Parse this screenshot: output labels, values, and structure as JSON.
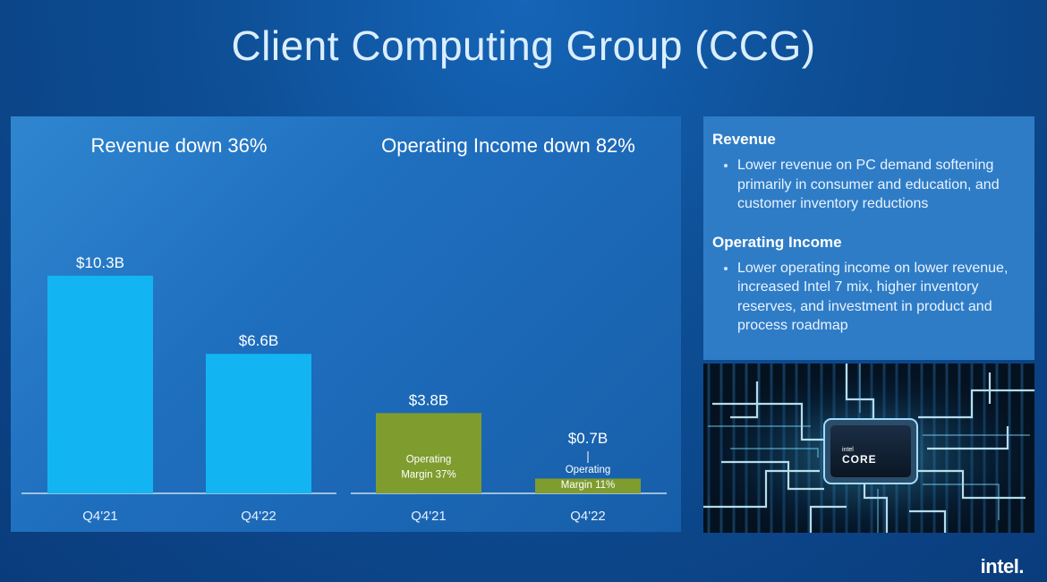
{
  "title": "Client Computing Group (CCG)",
  "colors": {
    "revenue_bar": "#12b5f2",
    "income_bar": "#7f9c2e",
    "baseline": "#c9dcef"
  },
  "chart_data": [
    {
      "type": "bar",
      "title": "Revenue down 36%",
      "categories": [
        "Q4'21",
        "Q4'22"
      ],
      "values": [
        10.3,
        6.6
      ],
      "value_labels": [
        "$10.3B",
        "$6.6B"
      ],
      "unit": "$B"
    },
    {
      "type": "bar",
      "title": "Operating Income down 82%",
      "categories": [
        "Q4'21",
        "Q4'22"
      ],
      "values": [
        3.8,
        0.7
      ],
      "value_labels": [
        "$3.8B",
        "$0.7B"
      ],
      "unit": "$B",
      "annotations": [
        {
          "line1": "Operating",
          "line2": "Margin 37%"
        },
        {
          "line1": "Operating",
          "line2": "Margin 11%"
        }
      ]
    }
  ],
  "commentary": {
    "revenue_heading": "Revenue",
    "revenue_bullet": "Lower revenue on PC demand softening primarily in consumer and education, and customer inventory reductions",
    "income_heading": "Operating Income",
    "income_bullet": "Lower operating income on lower revenue, increased Intel 7 mix, higher inventory reserves, and investment in product and process roadmap"
  },
  "chip": {
    "brand": "intel",
    "product": "CORE"
  },
  "logo": "intel."
}
